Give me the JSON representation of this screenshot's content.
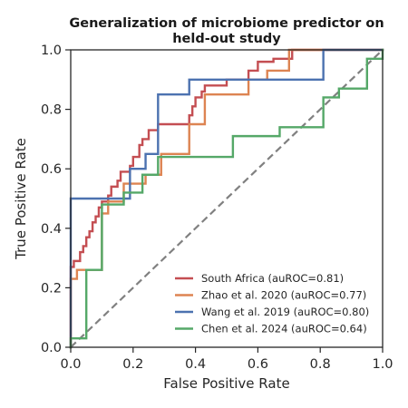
{
  "chart_data": {
    "type": "line",
    "title_lines": [
      "Generalization of microbiome predictor on",
      "held-out study"
    ],
    "xlabel": "False Positive Rate",
    "ylabel": "True Positive Rate",
    "xlim": [
      0.0,
      1.0
    ],
    "ylim": [
      0.0,
      1.0
    ],
    "xticks": [
      0.0,
      0.2,
      0.4,
      0.6,
      0.8,
      1.0
    ],
    "yticks": [
      0.0,
      0.2,
      0.4,
      0.6,
      0.8,
      1.0
    ],
    "xtick_labels": [
      "0.0",
      "0.2",
      "0.4",
      "0.6",
      "0.8",
      "1.0"
    ],
    "ytick_labels": [
      "0.0",
      "0.2",
      "0.4",
      "0.6",
      "0.8",
      "1.0"
    ],
    "grid": false,
    "legend_position": "lower-right",
    "series": [
      {
        "name": "South Africa (auROC=0.81)",
        "color": "#c44e52",
        "points": [
          [
            0,
            0
          ],
          [
            0,
            0.27
          ],
          [
            0.01,
            0.27
          ],
          [
            0.01,
            0.29
          ],
          [
            0.03,
            0.29
          ],
          [
            0.03,
            0.32
          ],
          [
            0.04,
            0.32
          ],
          [
            0.04,
            0.34
          ],
          [
            0.05,
            0.34
          ],
          [
            0.05,
            0.37
          ],
          [
            0.06,
            0.37
          ],
          [
            0.06,
            0.39
          ],
          [
            0.07,
            0.39
          ],
          [
            0.07,
            0.42
          ],
          [
            0.08,
            0.42
          ],
          [
            0.08,
            0.44
          ],
          [
            0.09,
            0.44
          ],
          [
            0.09,
            0.47
          ],
          [
            0.1,
            0.47
          ],
          [
            0.1,
            0.49
          ],
          [
            0.12,
            0.49
          ],
          [
            0.12,
            0.51
          ],
          [
            0.13,
            0.51
          ],
          [
            0.13,
            0.54
          ],
          [
            0.15,
            0.54
          ],
          [
            0.15,
            0.56
          ],
          [
            0.16,
            0.56
          ],
          [
            0.16,
            0.59
          ],
          [
            0.19,
            0.59
          ],
          [
            0.19,
            0.61
          ],
          [
            0.2,
            0.61
          ],
          [
            0.2,
            0.64
          ],
          [
            0.22,
            0.64
          ],
          [
            0.22,
            0.68
          ],
          [
            0.23,
            0.68
          ],
          [
            0.23,
            0.7
          ],
          [
            0.25,
            0.7
          ],
          [
            0.25,
            0.73
          ],
          [
            0.28,
            0.73
          ],
          [
            0.28,
            0.75
          ],
          [
            0.38,
            0.75
          ],
          [
            0.38,
            0.78
          ],
          [
            0.39,
            0.78
          ],
          [
            0.39,
            0.81
          ],
          [
            0.4,
            0.81
          ],
          [
            0.4,
            0.84
          ],
          [
            0.42,
            0.84
          ],
          [
            0.42,
            0.86
          ],
          [
            0.43,
            0.86
          ],
          [
            0.43,
            0.88
          ],
          [
            0.5,
            0.88
          ],
          [
            0.5,
            0.9
          ],
          [
            0.57,
            0.9
          ],
          [
            0.57,
            0.93
          ],
          [
            0.6,
            0.93
          ],
          [
            0.6,
            0.96
          ],
          [
            0.65,
            0.96
          ],
          [
            0.65,
            0.97
          ],
          [
            0.71,
            0.97
          ],
          [
            0.71,
            1.0
          ],
          [
            1.0,
            1.0
          ]
        ]
      },
      {
        "name": "Zhao et al. 2020 (auROC=0.77)",
        "color": "#dd8452",
        "points": [
          [
            0,
            0
          ],
          [
            0,
            0.23
          ],
          [
            0.02,
            0.23
          ],
          [
            0.02,
            0.26
          ],
          [
            0.1,
            0.26
          ],
          [
            0.1,
            0.45
          ],
          [
            0.12,
            0.45
          ],
          [
            0.12,
            0.49
          ],
          [
            0.17,
            0.49
          ],
          [
            0.17,
            0.55
          ],
          [
            0.24,
            0.55
          ],
          [
            0.24,
            0.58
          ],
          [
            0.29,
            0.58
          ],
          [
            0.29,
            0.65
          ],
          [
            0.38,
            0.65
          ],
          [
            0.38,
            0.75
          ],
          [
            0.43,
            0.75
          ],
          [
            0.43,
            0.85
          ],
          [
            0.57,
            0.85
          ],
          [
            0.57,
            0.9
          ],
          [
            0.63,
            0.9
          ],
          [
            0.63,
            0.93
          ],
          [
            0.7,
            0.93
          ],
          [
            0.7,
            1.0
          ],
          [
            1.0,
            1.0
          ]
        ]
      },
      {
        "name": "Wang et al. 2019 (auROC=0.80)",
        "color": "#4c72b0",
        "points": [
          [
            0,
            0
          ],
          [
            0,
            0.5
          ],
          [
            0.19,
            0.5
          ],
          [
            0.19,
            0.6
          ],
          [
            0.24,
            0.6
          ],
          [
            0.24,
            0.65
          ],
          [
            0.28,
            0.65
          ],
          [
            0.28,
            0.85
          ],
          [
            0.38,
            0.85
          ],
          [
            0.38,
            0.9
          ],
          [
            0.81,
            0.9
          ],
          [
            0.81,
            1.0
          ],
          [
            1.0,
            1.0
          ]
        ]
      },
      {
        "name": "Chen et al. 2024 (auROC=0.64)",
        "color": "#55a868",
        "points": [
          [
            0,
            0
          ],
          [
            0,
            0.03
          ],
          [
            0.05,
            0.03
          ],
          [
            0.05,
            0.26
          ],
          [
            0.1,
            0.26
          ],
          [
            0.1,
            0.48
          ],
          [
            0.17,
            0.48
          ],
          [
            0.17,
            0.52
          ],
          [
            0.23,
            0.52
          ],
          [
            0.23,
            0.58
          ],
          [
            0.28,
            0.58
          ],
          [
            0.28,
            0.64
          ],
          [
            0.52,
            0.64
          ],
          [
            0.52,
            0.71
          ],
          [
            0.67,
            0.71
          ],
          [
            0.67,
            0.74
          ],
          [
            0.81,
            0.74
          ],
          [
            0.81,
            0.84
          ],
          [
            0.86,
            0.84
          ],
          [
            0.86,
            0.87
          ],
          [
            0.95,
            0.87
          ],
          [
            0.95,
            0.97
          ],
          [
            1.0,
            0.97
          ],
          [
            1.0,
            1.0
          ]
        ]
      }
    ],
    "reference_line": {
      "style": "dashed",
      "color": "#808080",
      "points": [
        [
          0,
          0
        ],
        [
          1,
          1
        ]
      ]
    }
  }
}
